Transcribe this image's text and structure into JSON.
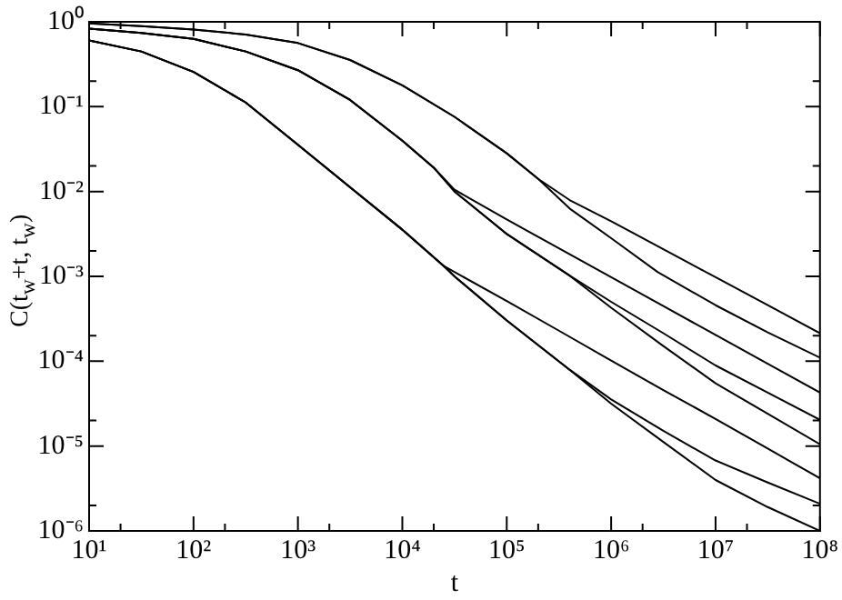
{
  "chart_data": {
    "type": "line",
    "xlabel": "t",
    "ylabel": "C(t$_{w}$+t, t$_{w}$)",
    "log": "xy",
    "grid": false,
    "marker": "none",
    "line_style": "solid",
    "xlim": [
      10,
      100000000
    ],
    "ylim": [
      1e-06,
      1
    ],
    "xticks": [
      {
        "value": 10,
        "label": "10¹"
      },
      {
        "value": 20,
        "label": null
      },
      {
        "value": 100,
        "label": "10²"
      },
      {
        "value": 200,
        "label": null
      },
      {
        "value": 1000,
        "label": "10³"
      },
      {
        "value": 2000,
        "label": null
      },
      {
        "value": 10000,
        "label": "10⁴"
      },
      {
        "value": 20000,
        "label": null
      },
      {
        "value": 100000,
        "label": "10⁵"
      },
      {
        "value": 200000,
        "label": null
      },
      {
        "value": 1000000,
        "label": "10⁶"
      },
      {
        "value": 2000000,
        "label": null
      },
      {
        "value": 10000000,
        "label": "10⁷"
      },
      {
        "value": 20000000,
        "label": null
      },
      {
        "value": 100000000,
        "label": "10⁸"
      }
    ],
    "yticks": [
      {
        "value": 1e-06,
        "label": "10⁻⁶"
      },
      {
        "value": 2e-06,
        "label": null
      },
      {
        "value": 1e-05,
        "label": "10⁻⁵"
      },
      {
        "value": 2e-05,
        "label": null
      },
      {
        "value": 0.0001,
        "label": "10⁻⁴"
      },
      {
        "value": 0.0002,
        "label": null
      },
      {
        "value": 0.001,
        "label": "10⁻³"
      },
      {
        "value": 0.002,
        "label": null
      },
      {
        "value": 0.01,
        "label": "10⁻²"
      },
      {
        "value": 0.02,
        "label": null
      },
      {
        "value": 0.1,
        "label": "10⁻¹"
      },
      {
        "value": 0.2,
        "label": null
      },
      {
        "value": 1,
        "label": "10⁰"
      }
    ],
    "series": [
      {
        "color": "#000000",
        "x": [
          10,
          31.6,
          100,
          316,
          1000,
          3160,
          10000,
          31600,
          100000,
          200000,
          400000,
          1000000,
          3160000,
          10000000,
          31600000,
          100000000
        ],
        "values": [
          0.955,
          0.891,
          0.813,
          0.708,
          0.562,
          0.355,
          0.178,
          0.0759,
          0.0282,
          0.0141,
          0.00794,
          0.00447,
          0.00209,
          0.000977,
          0.000457,
          0.000214
        ]
      },
      {
        "color": "#000000",
        "x": [
          10,
          31.6,
          100,
          316,
          1000,
          3160,
          10000,
          31600,
          100000,
          200000,
          400000,
          1000000,
          2800000,
          10000000,
          31600000,
          100000000
        ],
        "values": [
          0.955,
          0.891,
          0.813,
          0.708,
          0.562,
          0.355,
          0.178,
          0.0759,
          0.0282,
          0.0141,
          0.00631,
          0.00282,
          0.00112,
          0.000457,
          0.000219,
          0.00011
        ]
      },
      {
        "color": "#000000",
        "x": [
          10,
          31.6,
          100,
          316,
          1000,
          3160,
          10000,
          20000,
          31600,
          100000,
          316000,
          1000000,
          3160000,
          10000000,
          31600000,
          100000000
        ],
        "values": [
          0.832,
          0.741,
          0.631,
          0.447,
          0.269,
          0.12,
          0.0398,
          0.0191,
          0.0105,
          0.00468,
          0.00214,
          0.000977,
          0.000447,
          0.000204,
          9.33e-05,
          4.27e-05
        ]
      },
      {
        "color": "#000000",
        "x": [
          10,
          31.6,
          100,
          316,
          1000,
          3160,
          10000,
          20000,
          31600,
          100000,
          400000,
          1000000,
          3160000,
          10000000,
          31600000,
          100000000
        ],
        "values": [
          0.832,
          0.741,
          0.631,
          0.447,
          0.269,
          0.12,
          0.0398,
          0.0191,
          0.01,
          0.00316,
          0.00102,
          0.000501,
          0.000214,
          8.91e-05,
          4.27e-05,
          2.04e-05
        ]
      },
      {
        "color": "#000000",
        "x": [
          10,
          31.6,
          100,
          316,
          1000,
          3160,
          10000,
          20000,
          31600,
          100000,
          400000,
          1000000,
          3160000,
          10000000,
          31600000,
          100000000
        ],
        "values": [
          0.832,
          0.741,
          0.631,
          0.447,
          0.269,
          0.12,
          0.0398,
          0.0191,
          0.01,
          0.00316,
          0.00102,
          0.000427,
          0.000151,
          5.5e-05,
          2.4e-05,
          1.05e-05
        ]
      },
      {
        "color": "#000000",
        "x": [
          10,
          31.6,
          100,
          316,
          1000,
          3160,
          10000,
          25000,
          100000,
          316000,
          1000000,
          3160000,
          10000000,
          31600000,
          100000000
        ],
        "values": [
          0.603,
          0.447,
          0.257,
          0.112,
          0.0355,
          0.0112,
          0.00355,
          0.00132,
          0.000513,
          0.000229,
          0.000102,
          4.57e-05,
          2.09e-05,
          9.33e-06,
          4.17e-06
        ]
      },
      {
        "color": "#000000",
        "x": [
          10,
          31.6,
          100,
          316,
          1000,
          3160,
          10000,
          25000,
          31600,
          100000,
          400000,
          1000000,
          3160000,
          10000000,
          31600000,
          100000000
        ],
        "values": [
          0.603,
          0.447,
          0.257,
          0.112,
          0.0355,
          0.0112,
          0.00355,
          0.00132,
          0.001,
          0.000302,
          7.94e-05,
          3.55e-05,
          1.51e-05,
          6.76e-06,
          3.72e-06,
          2.09e-06
        ]
      },
      {
        "color": "#000000",
        "x": [
          10,
          31.6,
          100,
          316,
          1000,
          3160,
          10000,
          25000,
          31600,
          100000,
          400000,
          1000000,
          3160000,
          10000000,
          31600000,
          100000000
        ],
        "values": [
          0.603,
          0.447,
          0.257,
          0.112,
          0.0355,
          0.0112,
          0.00355,
          0.00132,
          0.001,
          0.000302,
          7.94e-05,
          3.16e-05,
          1.12e-05,
          3.98e-06,
          1.91e-06,
          1e-06
        ]
      }
    ]
  }
}
